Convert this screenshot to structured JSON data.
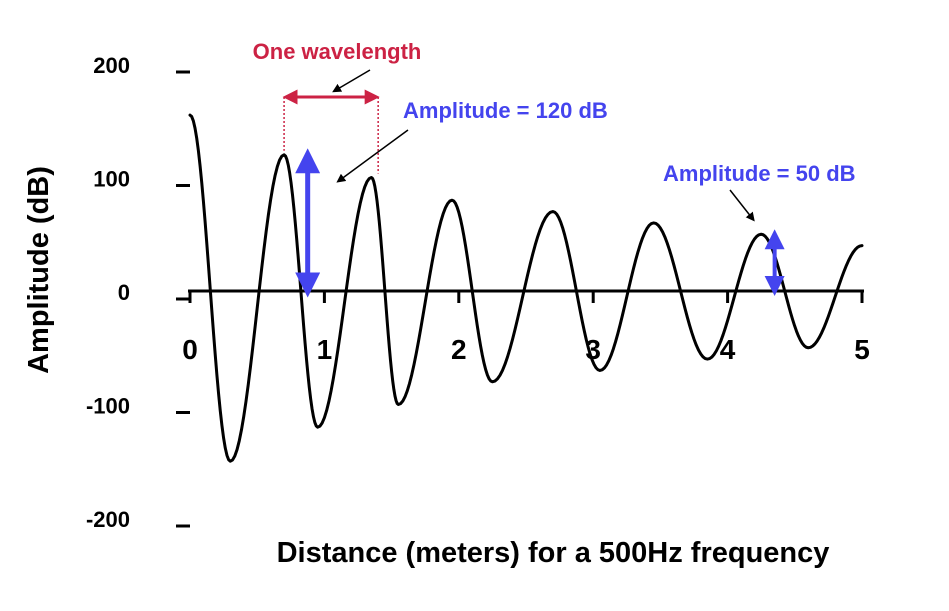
{
  "chart_data": {
    "type": "line",
    "title": "",
    "xlabel": "Distance (meters) for a 500Hz frequency",
    "ylabel": "Amplitude (dB)",
    "xlim": [
      0,
      5
    ],
    "ylim": [
      -200,
      200
    ],
    "x_ticks": [
      "0",
      "1",
      "2",
      "3",
      "4",
      "5"
    ],
    "y_ticks": [
      "200",
      "100",
      "0",
      "-100",
      "-200"
    ],
    "grid": false,
    "series": [
      {
        "name": "",
        "color": "#000000",
        "x": [
          0.0,
          0.3,
          0.7,
          0.95,
          1.35,
          1.55,
          1.95,
          2.25,
          2.7,
          3.05,
          3.45,
          3.85,
          4.25,
          4.6,
          5.0
        ],
        "y": [
          155,
          -150,
          120,
          -120,
          100,
          -100,
          80,
          -80,
          70,
          -70,
          60,
          -60,
          50,
          -50,
          40
        ]
      }
    ],
    "annotations": {
      "wavelength": {
        "label": "One wavelength",
        "color": "#cc2244",
        "x_start": 0.7,
        "x_end": 1.4
      },
      "amplitude_120": {
        "label": "Amplitude = 120 dB",
        "color": "#4444ee",
        "x": 0.95,
        "y_top": 120,
        "y_bottom": 0
      },
      "amplitude_50": {
        "label": "Amplitude = 50 dB",
        "color": "#4444ee",
        "x": 4.35,
        "y_top": 50,
        "y_bottom": 0
      }
    }
  }
}
